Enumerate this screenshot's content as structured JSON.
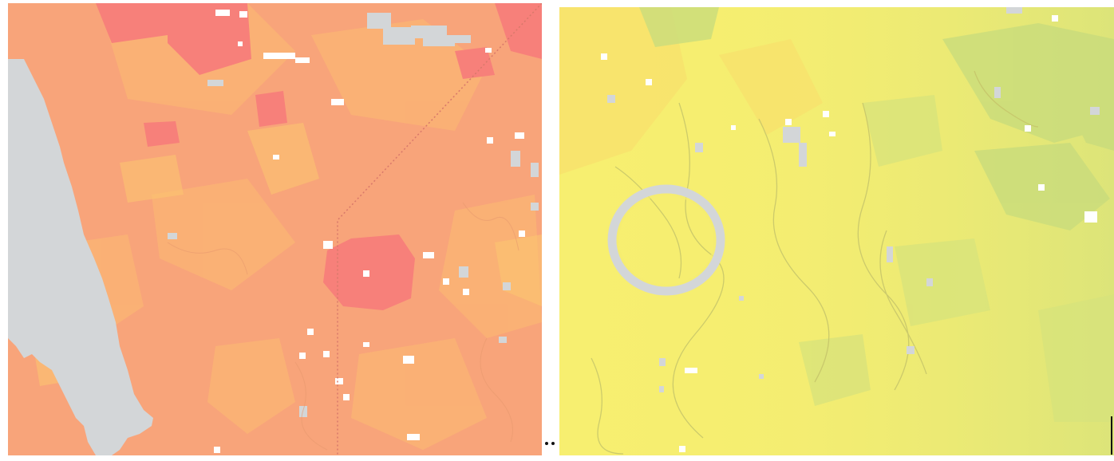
{
  "maps": [
    {
      "panel": "left",
      "palette": {
        "base": "#f8a47a",
        "hot": "#f7807a",
        "warm": "#fbbd6f",
        "nodata": "#d3d6d8",
        "boundary": "#d8786a"
      }
    },
    {
      "panel": "right",
      "palette": {
        "base": "#f7ef70",
        "cool": "#dde57a",
        "green": "#c9dc7c",
        "nodata": "#d3d6d8",
        "river": "#c8c866"
      }
    }
  ],
  "separator": {
    "dots": 2
  }
}
